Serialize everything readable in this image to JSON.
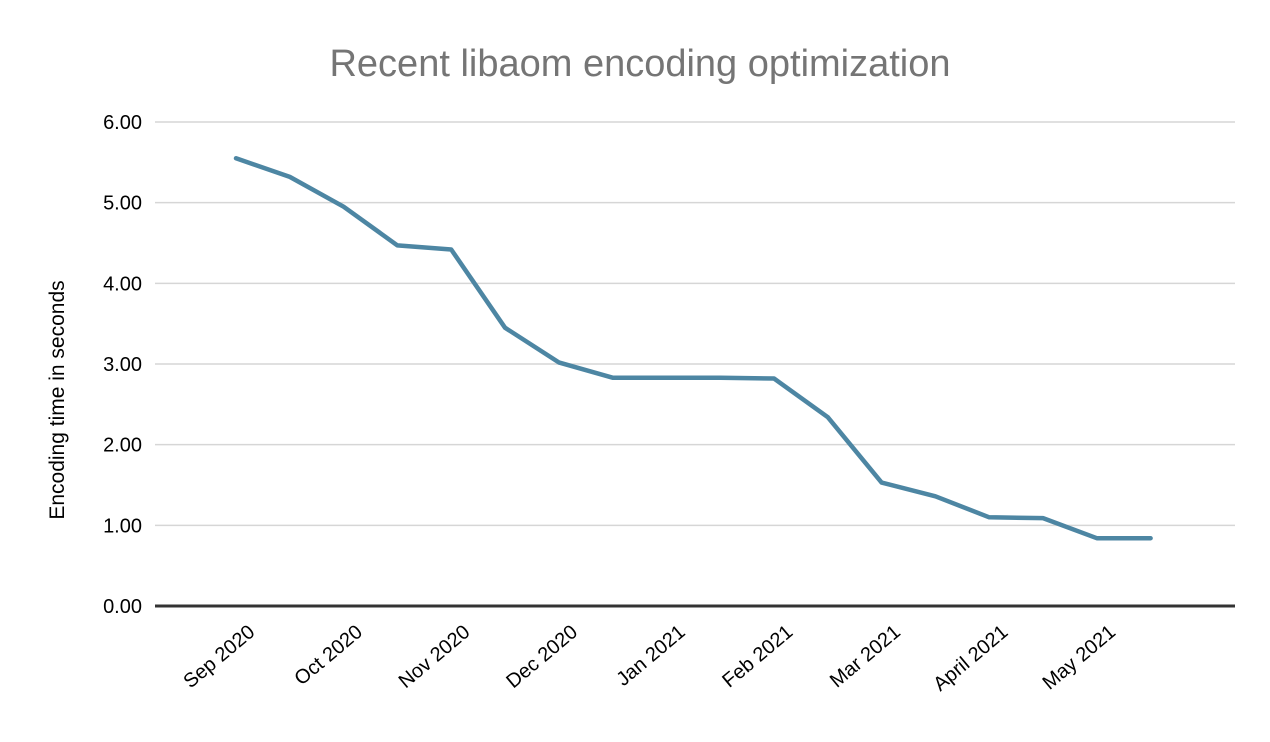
{
  "chart_data": {
    "type": "line",
    "title": "Recent libaom encoding optimization",
    "ylabel": "Encoding time in seconds",
    "xlabel": "",
    "ylim": [
      0,
      6
    ],
    "y_tick_step": 1,
    "y_tick_labels": [
      "0.00",
      "1.00",
      "2.00",
      "3.00",
      "4.00",
      "5.00",
      "6.00"
    ],
    "x_tick_labels": [
      "Sep 2020",
      "Oct 2020",
      "Nov 2020",
      "Dec 2020",
      "Jan 2021",
      "Feb 2021",
      "Mar 2021",
      "April 2021",
      "May 2021"
    ],
    "x_tick_point_indices": [
      0,
      2,
      4,
      6,
      8,
      10,
      12,
      14,
      16
    ],
    "points_per_month": 2,
    "grid": true,
    "legend_position": "none",
    "series": [
      {
        "name": "Encoding time in seconds",
        "values": [
          5.55,
          5.32,
          4.95,
          4.47,
          4.42,
          3.45,
          3.02,
          2.83,
          2.83,
          2.83,
          2.82,
          2.34,
          1.53,
          1.36,
          1.1,
          1.09,
          0.84,
          0.84
        ],
        "color": "#4d86a3"
      }
    ],
    "colors": {
      "title": "#757575",
      "gridline": "#d6d6d6",
      "axis_line": "#333333",
      "tick_labels": "#000000",
      "background": "#ffffff"
    }
  }
}
